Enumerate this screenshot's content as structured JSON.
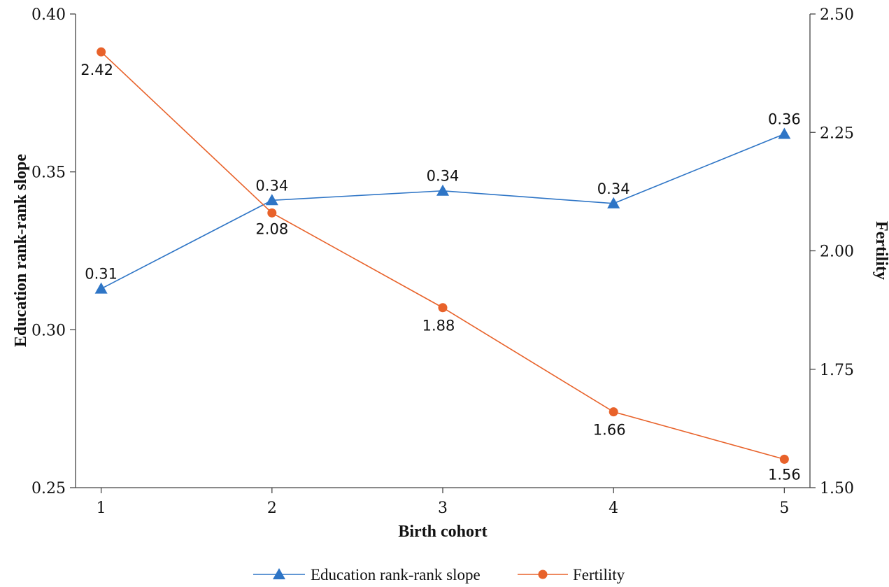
{
  "chart_data": {
    "type": "line",
    "xlabel": "Birth cohort",
    "ylabel_left": "Education rank-rank slope",
    "ylabel_right": "Fertility",
    "x": [
      1,
      2,
      3,
      4,
      5
    ],
    "x_ticks": [
      "1",
      "2",
      "3",
      "4",
      "5"
    ],
    "ylim_left": [
      0.25,
      0.4
    ],
    "yticks_left": [
      "0.25",
      "0.30",
      "0.35",
      "0.40"
    ],
    "ylim_right": [
      1.5,
      2.5
    ],
    "yticks_right": [
      "1.50",
      "1.75",
      "2.00",
      "2.25",
      "2.50"
    ],
    "grid": false,
    "legend_position": "bottom",
    "series": [
      {
        "name": "Education rank-rank slope",
        "axis": "left",
        "marker": "triangle",
        "color": "#2e75c6",
        "values": [
          0.313,
          0.341,
          0.344,
          0.34,
          0.362
        ],
        "labels": [
          "0.31",
          "0.34",
          "0.34",
          "0.34",
          "0.36"
        ]
      },
      {
        "name": "Fertility",
        "axis": "right",
        "marker": "circle",
        "color": "#e8622a",
        "values": [
          2.42,
          2.08,
          1.88,
          1.66,
          1.56
        ],
        "labels": [
          "2.42",
          "2.08",
          "1.88",
          "1.66",
          "1.56"
        ]
      }
    ]
  }
}
